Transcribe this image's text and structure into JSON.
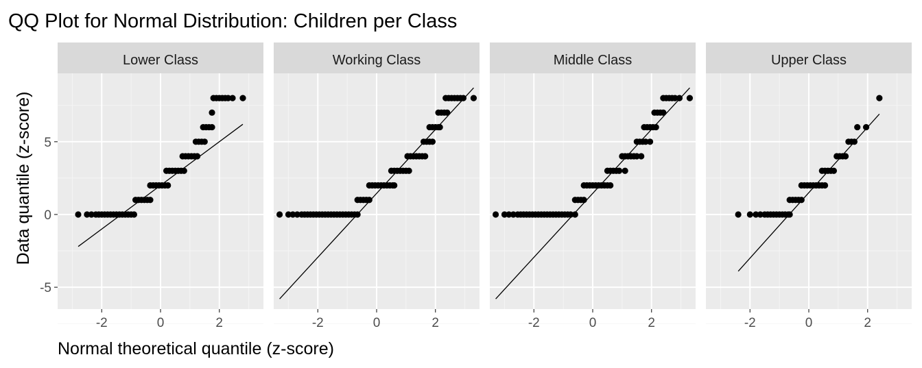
{
  "chart_data": {
    "type": "scatter",
    "title": "QQ Plot for Normal Distribution: Children per Class",
    "xlabel": "Normal theoretical quantile (z-score)",
    "ylabel": "Data quantile (z-score)",
    "xlim": [
      -3.5,
      3.5
    ],
    "ylim": [
      -6.5,
      9.7
    ],
    "x_ticks": [
      -2,
      0,
      2
    ],
    "x_tick_labels": [
      "-2",
      "0",
      "2"
    ],
    "y_ticks": [
      -5,
      0,
      5
    ],
    "y_tick_labels": [
      "-5",
      "0",
      "5"
    ],
    "grid": true,
    "panel_background": "#ebebeb",
    "strip_background": "#d9d9d9",
    "point_color": "#000000",
    "line_color": "#000000",
    "panels": [
      {
        "label": "Lower Class",
        "qq_line": {
          "x": [
            -2.8,
            2.8
          ],
          "y": [
            -2.2,
            6.2
          ]
        },
        "points": [
          [
            -2.8,
            0
          ],
          [
            -2.5,
            0
          ],
          [
            -2.35,
            0
          ],
          [
            -2.2,
            0
          ],
          [
            -2.1,
            0
          ],
          [
            -2.0,
            0
          ],
          [
            -1.9,
            0
          ],
          [
            -1.8,
            0
          ],
          [
            -1.7,
            0
          ],
          [
            -1.6,
            0
          ],
          [
            -1.5,
            0
          ],
          [
            -1.4,
            0
          ],
          [
            -1.3,
            0
          ],
          [
            -1.2,
            0
          ],
          [
            -1.1,
            0
          ],
          [
            -1.0,
            0
          ],
          [
            -0.9,
            0
          ],
          [
            -0.85,
            1
          ],
          [
            -0.75,
            1
          ],
          [
            -0.65,
            1
          ],
          [
            -0.55,
            1
          ],
          [
            -0.45,
            1
          ],
          [
            -0.35,
            1
          ],
          [
            -0.35,
            2
          ],
          [
            -0.25,
            2
          ],
          [
            -0.15,
            2
          ],
          [
            -0.05,
            2
          ],
          [
            0.05,
            2
          ],
          [
            0.15,
            2
          ],
          [
            0.25,
            2
          ],
          [
            0.2,
            3
          ],
          [
            0.3,
            3
          ],
          [
            0.4,
            3
          ],
          [
            0.5,
            3
          ],
          [
            0.6,
            3
          ],
          [
            0.7,
            3
          ],
          [
            0.8,
            3
          ],
          [
            0.75,
            4
          ],
          [
            0.85,
            4
          ],
          [
            0.95,
            4
          ],
          [
            1.05,
            4
          ],
          [
            1.15,
            4
          ],
          [
            1.25,
            4
          ],
          [
            1.2,
            5
          ],
          [
            1.3,
            5
          ],
          [
            1.4,
            5
          ],
          [
            1.5,
            5
          ],
          [
            1.45,
            6
          ],
          [
            1.55,
            6
          ],
          [
            1.65,
            6
          ],
          [
            1.75,
            6
          ],
          [
            1.75,
            7
          ],
          [
            1.8,
            8
          ],
          [
            1.9,
            8
          ],
          [
            2.0,
            8
          ],
          [
            2.1,
            8
          ],
          [
            2.2,
            8
          ],
          [
            2.3,
            8
          ],
          [
            2.45,
            8
          ],
          [
            2.8,
            8
          ]
        ]
      },
      {
        "label": "Working Class",
        "qq_line": {
          "x": [
            -3.3,
            3.3
          ],
          "y": [
            -5.8,
            8.7
          ]
        },
        "points": [
          [
            -3.3,
            0
          ],
          [
            -3.0,
            0
          ],
          [
            -2.85,
            0
          ],
          [
            -2.7,
            0
          ],
          [
            -2.55,
            0
          ],
          [
            -2.45,
            0
          ],
          [
            -2.35,
            0
          ],
          [
            -2.25,
            0
          ],
          [
            -2.15,
            0
          ],
          [
            -2.05,
            0
          ],
          [
            -1.95,
            0
          ],
          [
            -1.85,
            0
          ],
          [
            -1.75,
            0
          ],
          [
            -1.65,
            0
          ],
          [
            -1.55,
            0
          ],
          [
            -1.45,
            0
          ],
          [
            -1.35,
            0
          ],
          [
            -1.25,
            0
          ],
          [
            -1.15,
            0
          ],
          [
            -1.05,
            0
          ],
          [
            -0.95,
            0
          ],
          [
            -0.85,
            0
          ],
          [
            -0.75,
            0
          ],
          [
            -0.65,
            0
          ],
          [
            -0.65,
            1
          ],
          [
            -0.55,
            1
          ],
          [
            -0.45,
            1
          ],
          [
            -0.35,
            1
          ],
          [
            -0.25,
            1
          ],
          [
            -0.25,
            2
          ],
          [
            -0.15,
            2
          ],
          [
            -0.05,
            2
          ],
          [
            0.05,
            2
          ],
          [
            0.15,
            2
          ],
          [
            0.25,
            2
          ],
          [
            0.35,
            2
          ],
          [
            0.45,
            2
          ],
          [
            0.55,
            2
          ],
          [
            0.6,
            2
          ],
          [
            0.5,
            3
          ],
          [
            0.6,
            3
          ],
          [
            0.7,
            3
          ],
          [
            0.8,
            3
          ],
          [
            0.9,
            3
          ],
          [
            1.0,
            3
          ],
          [
            1.1,
            3
          ],
          [
            1.05,
            4
          ],
          [
            1.15,
            4
          ],
          [
            1.25,
            4
          ],
          [
            1.35,
            4
          ],
          [
            1.45,
            4
          ],
          [
            1.55,
            4
          ],
          [
            1.65,
            4
          ],
          [
            1.6,
            5
          ],
          [
            1.7,
            5
          ],
          [
            1.8,
            5
          ],
          [
            1.9,
            5
          ],
          [
            1.8,
            6
          ],
          [
            1.9,
            6
          ],
          [
            2.0,
            6
          ],
          [
            2.1,
            6
          ],
          [
            2.15,
            6
          ],
          [
            2.1,
            7
          ],
          [
            2.2,
            7
          ],
          [
            2.3,
            7
          ],
          [
            2.4,
            7
          ],
          [
            2.35,
            8
          ],
          [
            2.45,
            8
          ],
          [
            2.55,
            8
          ],
          [
            2.65,
            8
          ],
          [
            2.75,
            8
          ],
          [
            2.85,
            8
          ],
          [
            2.95,
            8
          ],
          [
            3.3,
            8
          ]
        ]
      },
      {
        "label": "Middle Class",
        "qq_line": {
          "x": [
            -3.3,
            3.3
          ],
          "y": [
            -5.8,
            8.7
          ]
        },
        "points": [
          [
            -3.3,
            0
          ],
          [
            -3.0,
            0
          ],
          [
            -2.85,
            0
          ],
          [
            -2.7,
            0
          ],
          [
            -2.55,
            0
          ],
          [
            -2.45,
            0
          ],
          [
            -2.35,
            0
          ],
          [
            -2.25,
            0
          ],
          [
            -2.15,
            0
          ],
          [
            -2.05,
            0
          ],
          [
            -1.95,
            0
          ],
          [
            -1.85,
            0
          ],
          [
            -1.75,
            0
          ],
          [
            -1.65,
            0
          ],
          [
            -1.55,
            0
          ],
          [
            -1.45,
            0
          ],
          [
            -1.35,
            0
          ],
          [
            -1.25,
            0
          ],
          [
            -1.15,
            0
          ],
          [
            -1.05,
            0
          ],
          [
            -0.95,
            0
          ],
          [
            -0.85,
            0
          ],
          [
            -0.75,
            0
          ],
          [
            -0.6,
            0
          ],
          [
            -0.6,
            1
          ],
          [
            -0.5,
            1
          ],
          [
            -0.4,
            1
          ],
          [
            -0.3,
            1
          ],
          [
            -0.3,
            2
          ],
          [
            -0.2,
            2
          ],
          [
            -0.1,
            2
          ],
          [
            0.0,
            2
          ],
          [
            0.1,
            2
          ],
          [
            0.2,
            2
          ],
          [
            0.3,
            2
          ],
          [
            0.4,
            2
          ],
          [
            0.5,
            2
          ],
          [
            0.6,
            2
          ],
          [
            0.5,
            3
          ],
          [
            0.6,
            3
          ],
          [
            0.7,
            3
          ],
          [
            0.8,
            3
          ],
          [
            0.9,
            3
          ],
          [
            1.1,
            3
          ],
          [
            1.0,
            4
          ],
          [
            1.1,
            4
          ],
          [
            1.2,
            4
          ],
          [
            1.3,
            4
          ],
          [
            1.4,
            4
          ],
          [
            1.5,
            4
          ],
          [
            1.65,
            4
          ],
          [
            1.5,
            5
          ],
          [
            1.6,
            5
          ],
          [
            1.7,
            5
          ],
          [
            1.8,
            5
          ],
          [
            1.95,
            5
          ],
          [
            1.75,
            6
          ],
          [
            1.85,
            6
          ],
          [
            1.95,
            6
          ],
          [
            2.05,
            6
          ],
          [
            2.15,
            6
          ],
          [
            2.1,
            7
          ],
          [
            2.2,
            7
          ],
          [
            2.3,
            7
          ],
          [
            2.4,
            7
          ],
          [
            2.4,
            8
          ],
          [
            2.5,
            8
          ],
          [
            2.6,
            8
          ],
          [
            2.7,
            8
          ],
          [
            2.8,
            8
          ],
          [
            2.95,
            8
          ],
          [
            3.3,
            8
          ]
        ]
      },
      {
        "label": "Upper Class",
        "qq_line": {
          "x": [
            -2.4,
            2.4
          ],
          "y": [
            -3.9,
            6.9
          ]
        },
        "points": [
          [
            -2.4,
            0
          ],
          [
            -2.0,
            0
          ],
          [
            -1.8,
            0
          ],
          [
            -1.65,
            0
          ],
          [
            -1.5,
            0
          ],
          [
            -1.4,
            0
          ],
          [
            -1.3,
            0
          ],
          [
            -1.2,
            0
          ],
          [
            -1.1,
            0
          ],
          [
            -1.0,
            0
          ],
          [
            -0.9,
            0
          ],
          [
            -0.8,
            0
          ],
          [
            -0.7,
            0
          ],
          [
            -0.65,
            0
          ],
          [
            -0.65,
            1
          ],
          [
            -0.55,
            1
          ],
          [
            -0.45,
            1
          ],
          [
            -0.35,
            1
          ],
          [
            -0.25,
            1
          ],
          [
            -0.25,
            2
          ],
          [
            -0.15,
            2
          ],
          [
            -0.05,
            2
          ],
          [
            0.05,
            2
          ],
          [
            0.15,
            2
          ],
          [
            0.25,
            2
          ],
          [
            0.35,
            2
          ],
          [
            0.45,
            2
          ],
          [
            0.55,
            2
          ],
          [
            0.45,
            3
          ],
          [
            0.55,
            3
          ],
          [
            0.65,
            3
          ],
          [
            0.75,
            3
          ],
          [
            0.85,
            3
          ],
          [
            0.95,
            4
          ],
          [
            1.05,
            4
          ],
          [
            1.15,
            4
          ],
          [
            1.25,
            4
          ],
          [
            1.35,
            5
          ],
          [
            1.45,
            5
          ],
          [
            1.55,
            5
          ],
          [
            1.65,
            6
          ],
          [
            1.95,
            6
          ],
          [
            2.4,
            8
          ]
        ]
      }
    ]
  }
}
